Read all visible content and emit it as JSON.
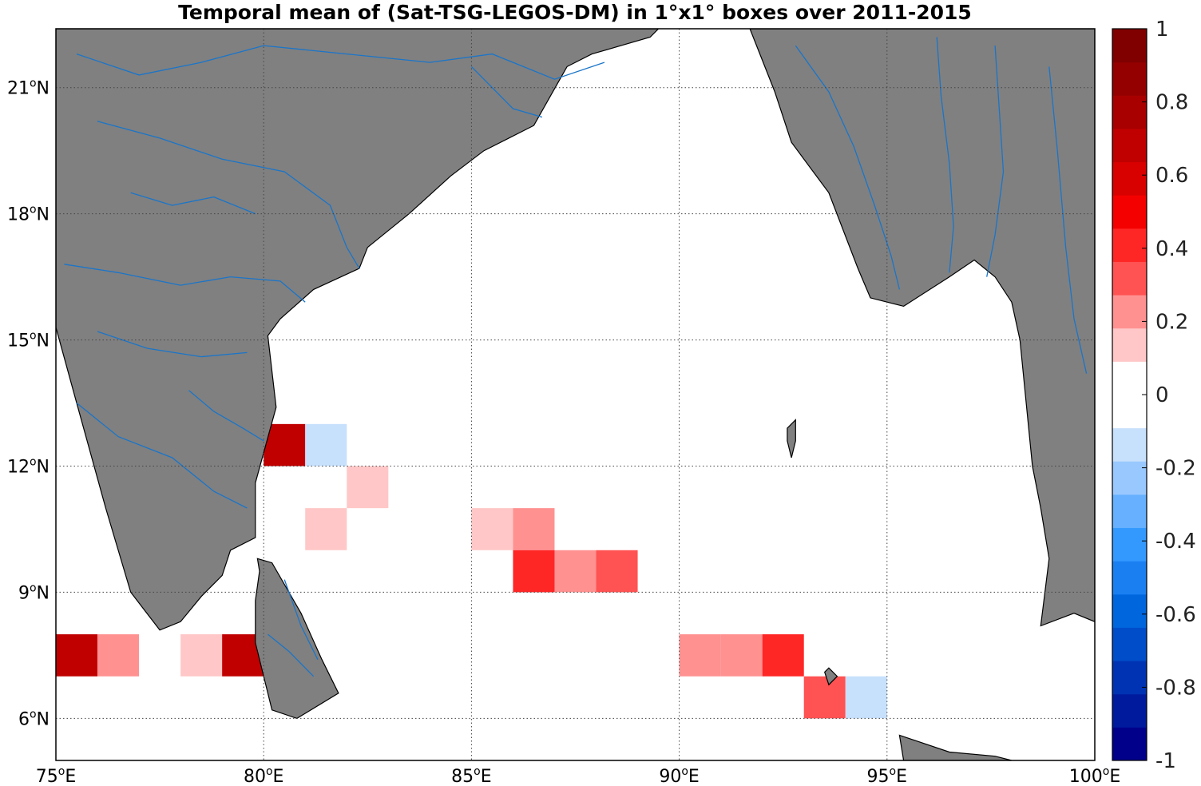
{
  "title": "Temporal mean of (Sat-TSG-LEGOS-DM) in 1°x1° boxes over 2011-2015",
  "map": {
    "lon_range": [
      75,
      100
    ],
    "lat_range": [
      5,
      22.4
    ],
    "land_color": "#808080",
    "river_color": "#1a75c9",
    "grid_style": "dotted",
    "x_ticks": [
      {
        "value": 75,
        "deg": "75",
        "hemi": "E"
      },
      {
        "value": 80,
        "deg": "80",
        "hemi": "E"
      },
      {
        "value": 85,
        "deg": "85",
        "hemi": "E"
      },
      {
        "value": 90,
        "deg": "90",
        "hemi": "E"
      },
      {
        "value": 95,
        "deg": "95",
        "hemi": "E"
      },
      {
        "value": 100,
        "deg": "100",
        "hemi": "E"
      }
    ],
    "y_ticks": [
      {
        "value": 6,
        "deg": "6",
        "hemi": "N"
      },
      {
        "value": 9,
        "deg": "9",
        "hemi": "N"
      },
      {
        "value": 12,
        "deg": "12",
        "hemi": "N"
      },
      {
        "value": 15,
        "deg": "15",
        "hemi": "N"
      },
      {
        "value": 18,
        "deg": "18",
        "hemi": "N"
      },
      {
        "value": 21,
        "deg": "21",
        "hemi": "N"
      }
    ]
  },
  "colorbar": {
    "range": [
      -1,
      1
    ],
    "colors_low_to_high": [
      "#00008b",
      "#001a9e",
      "#0033b3",
      "#004dc9",
      "#0066de",
      "#1a80f2",
      "#3399ff",
      "#66b0ff",
      "#99c8ff",
      "#c7e0fc",
      "#ffffff",
      "#ffffff",
      "#ffc7c7",
      "#ff9191",
      "#ff5252",
      "#ff2626",
      "#f50000",
      "#d90000",
      "#c00000",
      "#a80000",
      "#940000",
      "#800000"
    ],
    "tick_labels": [
      {
        "value": 1,
        "label": "1"
      },
      {
        "value": 0.8,
        "label": "0.8"
      },
      {
        "value": 0.6,
        "label": "0.6"
      },
      {
        "value": 0.4,
        "label": "0.4"
      },
      {
        "value": 0.2,
        "label": "0.2"
      },
      {
        "value": 0,
        "label": "0"
      },
      {
        "value": -0.2,
        "label": "-0.2"
      },
      {
        "value": -0.4,
        "label": "-0.4"
      },
      {
        "value": -0.6,
        "label": "-0.6"
      },
      {
        "value": -0.8,
        "label": "-0.8"
      },
      {
        "value": -1,
        "label": "-1"
      }
    ]
  },
  "chart_data": {
    "type": "heatmap",
    "title": "Temporal mean of (Sat-TSG-LEGOS-DM) in 1°x1° boxes over 2011-2015",
    "xlabel": "",
    "ylabel": "",
    "xlim": [
      75,
      100
    ],
    "ylim": [
      5,
      22.4
    ],
    "clim": [
      -1,
      1
    ],
    "grid": true,
    "cells": [
      {
        "lon": 80,
        "lat": 12,
        "value": 0.65
      },
      {
        "lon": 81,
        "lat": 12,
        "value": -0.15
      },
      {
        "lon": 82,
        "lat": 11,
        "value": 0.15
      },
      {
        "lon": 81,
        "lat": 10,
        "value": 0.15
      },
      {
        "lon": 85,
        "lat": 10,
        "value": 0.15
      },
      {
        "lon": 86,
        "lat": 10,
        "value": 0.25
      },
      {
        "lon": 86,
        "lat": 9,
        "value": 0.45
      },
      {
        "lon": 87,
        "lat": 9,
        "value": 0.25
      },
      {
        "lon": 88,
        "lat": 9,
        "value": 0.35
      },
      {
        "lon": 75,
        "lat": 7,
        "value": 0.65
      },
      {
        "lon": 76,
        "lat": 7,
        "value": 0.25
      },
      {
        "lon": 78,
        "lat": 7,
        "value": 0.15
      },
      {
        "lon": 79,
        "lat": 7,
        "value": 0.65
      },
      {
        "lon": 90,
        "lat": 7,
        "value": 0.25
      },
      {
        "lon": 91,
        "lat": 7,
        "value": 0.25
      },
      {
        "lon": 92,
        "lat": 7,
        "value": 0.45
      },
      {
        "lon": 93,
        "lat": 6,
        "value": 0.35
      },
      {
        "lon": 94,
        "lat": 6,
        "value": -0.15
      }
    ]
  }
}
